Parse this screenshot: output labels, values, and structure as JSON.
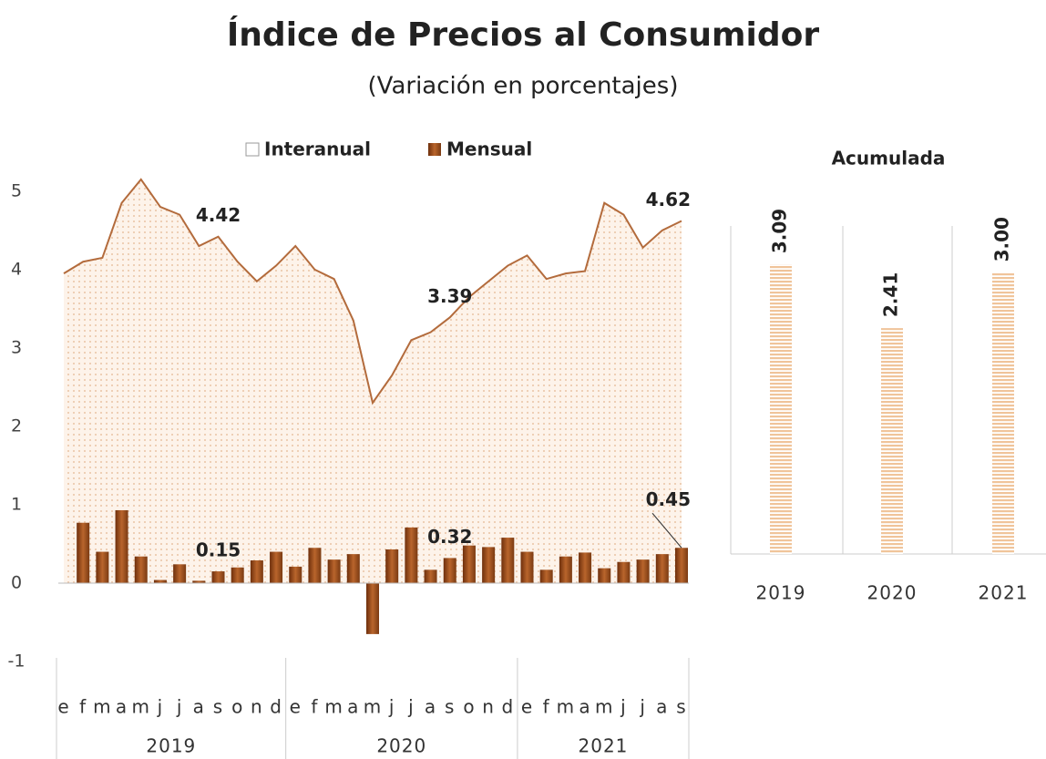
{
  "chart_data": [
    {
      "type": "combo",
      "title": "Índice de Precios al Consumidor",
      "subtitle": "(Variación en porcentajes)",
      "categories": [
        "e",
        "f",
        "m",
        "a",
        "m",
        "j",
        "j",
        "a",
        "s",
        "o",
        "n",
        "d",
        "e",
        "f",
        "m",
        "a",
        "m",
        "j",
        "j",
        "a",
        "s",
        "o",
        "n",
        "d",
        "e",
        "f",
        "m",
        "a",
        "m",
        "j",
        "j",
        "a",
        "s"
      ],
      "groups": [
        {
          "label": "2019",
          "count": 12
        },
        {
          "label": "2020",
          "count": 12
        },
        {
          "label": "2021",
          "count": 9
        }
      ],
      "series": [
        {
          "name": "Interanual",
          "type": "area",
          "color": "#b36b3c",
          "values": [
            3.95,
            4.1,
            4.15,
            4.85,
            5.15,
            4.8,
            4.7,
            4.3,
            4.42,
            4.1,
            3.85,
            4.05,
            4.3,
            4.0,
            3.88,
            3.35,
            2.3,
            2.65,
            3.1,
            3.2,
            3.39,
            3.65,
            3.85,
            4.05,
            4.18,
            3.88,
            3.95,
            3.98,
            4.85,
            4.7,
            4.28,
            4.5,
            4.62
          ]
        },
        {
          "name": "Mensual",
          "type": "bar",
          "color": "#8b4513",
          "values": [
            null,
            0.77,
            0.4,
            0.93,
            0.34,
            0.04,
            0.24,
            0.03,
            0.15,
            0.2,
            0.29,
            0.4,
            0.21,
            0.45,
            0.3,
            0.37,
            -0.65,
            0.43,
            0.71,
            0.17,
            0.32,
            0.48,
            0.46,
            0.58,
            0.4,
            0.17,
            0.34,
            0.39,
            0.19,
            0.27,
            0.3,
            0.37,
            0.45
          ]
        }
      ],
      "data_labels": [
        {
          "series": 0,
          "index": 8
        },
        {
          "series": 0,
          "index": 20
        },
        {
          "series": 0,
          "index": 32
        },
        {
          "series": 1,
          "index": 8
        },
        {
          "series": 1,
          "index": 20
        },
        {
          "series": 1,
          "index": 32
        }
      ],
      "ylim": [
        -1,
        5.3
      ],
      "yticks": [
        -1,
        0,
        1,
        2,
        3,
        4,
        5
      ],
      "legend": "top"
    },
    {
      "type": "bar",
      "title": "Acumulada",
      "categories": [
        "2019",
        "2020",
        "2021"
      ],
      "values": [
        3.09,
        2.41,
        3.0
      ],
      "value_labels": [
        "3.09",
        "2.41",
        "3.00"
      ],
      "color": "#f0c49a",
      "ylim": [
        0,
        3.5
      ]
    }
  ]
}
